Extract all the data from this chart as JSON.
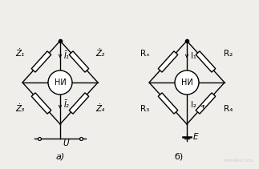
{
  "bg_color": "#f0eeeb",
  "label_a": "a)",
  "label_b": "б)",
  "ni_label": "НИ",
  "circuit_a": {
    "z1": "Ż₁",
    "z2": "Ż₂",
    "z3": "Ż₃",
    "z4": "Ż₄",
    "i1": "Ī₁",
    "i2": "Ī₂",
    "u_label": "U"
  },
  "circuit_b": {
    "r1": "Rₓ",
    "r2": "R₂",
    "r3": "R₃",
    "r4": "R₄",
    "i1": "I₁",
    "i2": "I₂",
    "e_label": "E"
  }
}
